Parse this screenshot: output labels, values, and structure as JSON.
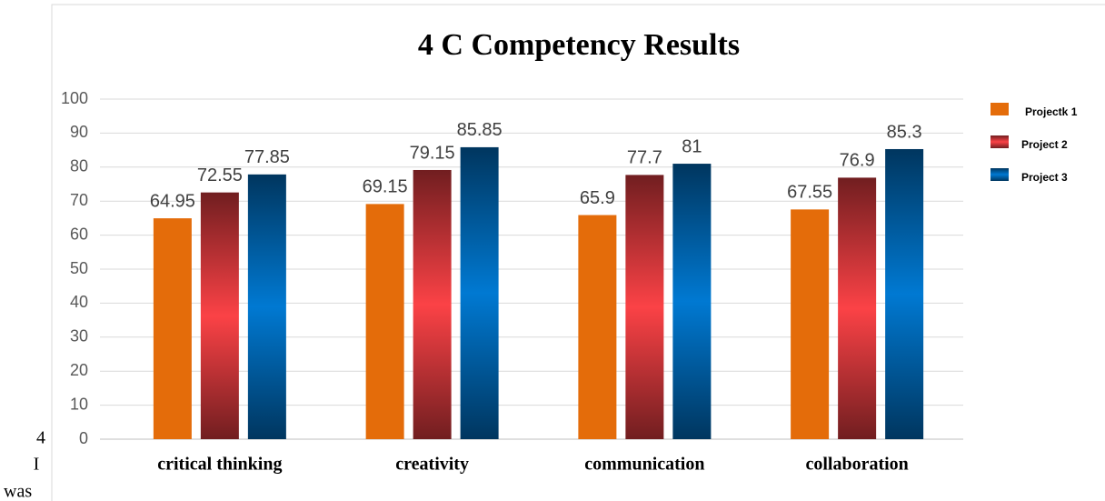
{
  "chart_data": {
    "type": "bar",
    "title": "4 C Competency Results",
    "categories": [
      "critical thinking",
      "creativity",
      "communication",
      "collaboration"
    ],
    "series": [
      {
        "name": "Projectk 1",
        "color": "#e46c0a",
        "gradient": false,
        "values": [
          64.95,
          69.15,
          65.9,
          67.55
        ]
      },
      {
        "name": "Project 2",
        "color": "#fb4246",
        "gradient": true,
        "values": [
          72.55,
          79.15,
          77.7,
          76.9
        ]
      },
      {
        "name": "Project 3",
        "color": "#0079d2",
        "gradient": true,
        "values": [
          77.85,
          85.85,
          81,
          85.3
        ]
      }
    ],
    "ylim": [
      0,
      100
    ],
    "yticks": [
      0,
      10,
      20,
      30,
      40,
      50,
      60,
      70,
      80,
      90,
      100
    ],
    "grid": true,
    "legend": "right"
  },
  "document_text": [
    "4",
    "I",
    "was"
  ]
}
